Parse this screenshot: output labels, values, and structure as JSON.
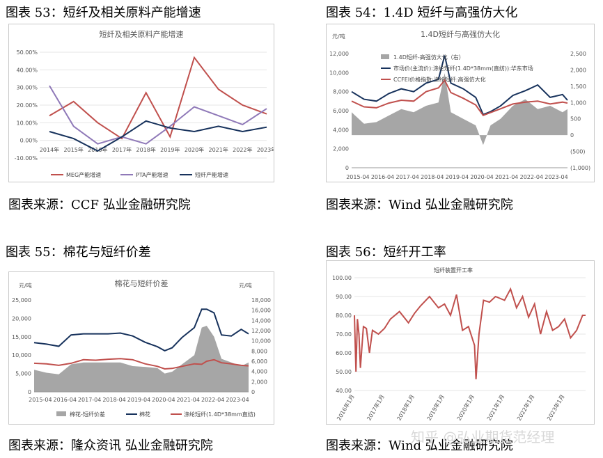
{
  "fig53": {
    "title": "图表 53：短纤及相关原料产能增速",
    "source": "图表来源：CCF 弘业金融研究院"
  },
  "fig54": {
    "title": "图表 54：1.4D 短纤与高强仿大化",
    "source": "图表来源：Wind 弘业金融研究院"
  },
  "fig55": {
    "title": "图表 55：棉花与短纤价差",
    "source": "图表来源：隆众资讯 弘业金融研究院"
  },
  "fig56": {
    "title": "图表 56：短纤开工率",
    "source": "图表来源：Wind 弘业金融研究院"
  },
  "watermark": "知乎 @弘业期货范经理",
  "chart_data": [
    {
      "id": "fig53",
      "type": "line",
      "title": "短纤及相关原料产能增速",
      "x": [
        "2014年",
        "2015年",
        "2016年",
        "2017年",
        "2018年",
        "2019年",
        "2020年",
        "2021年",
        "2022年",
        "2023年"
      ],
      "ylim": [
        -10,
        50
      ],
      "yticks": [
        "50.00%",
        "40.00%",
        "30.00%",
        "20.00%",
        "10.00%",
        "0.00%",
        "-10.00%"
      ],
      "series": [
        {
          "name": "MEG产能增速",
          "color": "#c0504d",
          "values": [
            14,
            22,
            10,
            1,
            27,
            2,
            47,
            29,
            20,
            15
          ]
        },
        {
          "name": "PTA产能增速",
          "color": "#8f79b8",
          "values": [
            31,
            8,
            -2,
            2,
            -2,
            8,
            19,
            14,
            9,
            18
          ]
        },
        {
          "name": "短纤产能增速",
          "color": "#17325c",
          "values": [
            5,
            1,
            -6,
            2,
            11,
            7,
            5,
            8,
            5,
            7.5
          ]
        }
      ],
      "legend": "bottom"
    },
    {
      "id": "fig54",
      "type": "line",
      "title": "1.4D短纤与高强仿大化",
      "ylabel": "元/吨",
      "x_ticks": [
        "2015-04",
        "2016-04",
        "2017-04",
        "2018-04",
        "2019-04",
        "2020-04",
        "2021-04",
        "2022-04",
        "2023-04"
      ],
      "left_ticks": [
        "12,000",
        "10,000",
        "8,000",
        "6,000",
        "4,000",
        "2,000",
        "0"
      ],
      "right_ticks": [
        "2,500",
        "2,000",
        "1,500",
        "1,000",
        "500",
        "0",
        "(500)",
        "(1,000)"
      ],
      "ylim_left": [
        0,
        12000
      ],
      "ylim_right": [
        -1000,
        2500
      ],
      "x_range": [
        2015.0,
        2023.7
      ],
      "series": [
        {
          "name": "1.4D短纤-高强仿大化（右）",
          "type": "area",
          "axis": "right",
          "color": "#a6a6a6",
          "x": [
            2015.0,
            2015.5,
            2016.0,
            2016.5,
            2017.0,
            2017.5,
            2018.0,
            2018.5,
            2018.75,
            2019.0,
            2019.5,
            2020.0,
            2020.3,
            2020.6,
            2021.0,
            2021.5,
            2022.0,
            2022.5,
            2023.0,
            2023.5,
            2023.7
          ],
          "values": [
            700,
            350,
            400,
            600,
            800,
            700,
            900,
            1000,
            1900,
            700,
            500,
            300,
            -300,
            300,
            500,
            900,
            1100,
            800,
            900,
            700,
            800
          ]
        },
        {
          "name": "市场价(主流价):涤纶短纤(1.4D*38mm(直纺)):华东市场",
          "type": "line",
          "axis": "left",
          "color": "#17325c",
          "x": [
            2015.0,
            2015.5,
            2016.0,
            2016.5,
            2017.0,
            2017.5,
            2018.0,
            2018.5,
            2018.75,
            2019.0,
            2019.5,
            2020.0,
            2020.3,
            2020.6,
            2021.0,
            2021.5,
            2022.0,
            2022.5,
            2023.0,
            2023.5,
            2023.7
          ],
          "values": [
            8000,
            7200,
            7000,
            7800,
            8300,
            8000,
            8900,
            9300,
            11800,
            8900,
            8300,
            7400,
            5600,
            5900,
            6500,
            7600,
            8100,
            8700,
            7400,
            7700,
            7100
          ]
        },
        {
          "name": "CCFEI价格指数:涤纶短纤:高强仿大化",
          "type": "line",
          "axis": "left",
          "color": "#c0504d",
          "x": [
            2015.0,
            2015.5,
            2016.0,
            2016.5,
            2017.0,
            2017.5,
            2018.0,
            2018.5,
            2018.75,
            2019.0,
            2019.5,
            2020.0,
            2020.3,
            2020.6,
            2021.0,
            2021.5,
            2022.0,
            2022.5,
            2023.0,
            2023.5,
            2023.7
          ],
          "values": [
            7000,
            6400,
            6300,
            6800,
            7100,
            7000,
            8000,
            8400,
            9200,
            7900,
            7300,
            6600,
            5500,
            5800,
            6200,
            6700,
            6900,
            7000,
            6700,
            6900,
            6800
          ]
        }
      ]
    },
    {
      "id": "fig55",
      "type": "line",
      "title": "棉花与短纤价差",
      "ylabel_left": "元/吨",
      "ylabel_right": "元/吨",
      "x_ticks": [
        "2015-04",
        "2016-04",
        "2017-04",
        "2018-04",
        "2019-04",
        "2020-04",
        "2021-04",
        "2022-04",
        "2023-04"
      ],
      "left_ticks": [
        "25,000",
        "20,000",
        "15,000",
        "10,000",
        "5,000",
        "0"
      ],
      "right_ticks": [
        "18,000",
        "16,000",
        "14,000",
        "12,000",
        "10,000",
        "8,000",
        "6,000",
        "4,000",
        "2,000",
        "0"
      ],
      "ylim_left": [
        0,
        25000
      ],
      "ylim_right": [
        0,
        18000
      ],
      "x_range": [
        2015.0,
        2023.7
      ],
      "series": [
        {
          "name": "棉花-短纤价差",
          "type": "area",
          "axis": "left",
          "color": "#a6a6a6",
          "x": [
            2015.0,
            2015.5,
            2016.0,
            2016.5,
            2017.0,
            2017.5,
            2018.0,
            2018.5,
            2019.0,
            2019.5,
            2020.0,
            2020.3,
            2020.6,
            2021.0,
            2021.5,
            2021.8,
            2022.0,
            2022.3,
            2022.6,
            2023.0,
            2023.4,
            2023.7
          ],
          "values": [
            6000,
            5200,
            4800,
            7500,
            8000,
            8000,
            8000,
            8000,
            7000,
            6800,
            6500,
            5000,
            5500,
            7500,
            10000,
            17500,
            18000,
            15000,
            9000,
            8000,
            7000,
            8000
          ]
        },
        {
          "name": "棉花",
          "type": "line",
          "axis": "left",
          "color": "#17325c",
          "x": [
            2015.0,
            2015.5,
            2016.0,
            2016.5,
            2017.0,
            2017.5,
            2018.0,
            2018.5,
            2019.0,
            2019.5,
            2020.0,
            2020.3,
            2020.6,
            2021.0,
            2021.5,
            2021.8,
            2022.0,
            2022.3,
            2022.6,
            2023.0,
            2023.4,
            2023.7
          ],
          "values": [
            13400,
            13000,
            12400,
            15500,
            15800,
            15800,
            15800,
            16000,
            15200,
            13500,
            12300,
            11200,
            12000,
            14800,
            17500,
            22500,
            22500,
            21500,
            15500,
            15200,
            17000,
            15800
          ]
        },
        {
          "name": "涤纶短纤(1.4D*38mm直纺)",
          "type": "line",
          "axis": "right",
          "color": "#c0504d",
          "x": [
            2015.0,
            2015.5,
            2016.0,
            2016.5,
            2017.0,
            2017.5,
            2018.0,
            2018.5,
            2019.0,
            2019.5,
            2020.0,
            2020.3,
            2020.6,
            2021.0,
            2021.5,
            2021.8,
            2022.0,
            2022.3,
            2022.6,
            2023.0,
            2023.4,
            2023.7
          ],
          "values": [
            5600,
            5500,
            5200,
            5600,
            6300,
            6200,
            6400,
            6500,
            6300,
            5500,
            5000,
            4500,
            4600,
            5000,
            5500,
            5400,
            6000,
            6300,
            5700,
            5500,
            5200,
            5100
          ]
        }
      ],
      "legend": "bottom"
    },
    {
      "id": "fig56",
      "type": "line",
      "title": "短纤装置开工率",
      "ylim": [
        40,
        100
      ],
      "left_ticks": [
        "100.00",
        "90.00",
        "80.00",
        "70.00",
        "60.00",
        "50.00",
        "40.00"
      ],
      "x_ticks": [
        "2016年1月",
        "2017年1月",
        "2018年1月",
        "2019年1月",
        "2020年1月",
        "2021年1月",
        "2022年1月",
        "2023年1月"
      ],
      "x_range": [
        2016.0,
        2023.7
      ],
      "series": [
        {
          "name": "短纤装置开工率",
          "color": "#c0504d",
          "x": [
            2016.0,
            2016.05,
            2016.1,
            2016.15,
            2016.2,
            2016.3,
            2016.4,
            2016.5,
            2016.6,
            2016.8,
            2017.0,
            2017.2,
            2017.5,
            2017.8,
            2018.0,
            2018.2,
            2018.5,
            2018.8,
            2019.0,
            2019.2,
            2019.4,
            2019.6,
            2019.8,
            2020.0,
            2020.05,
            2020.15,
            2020.3,
            2020.5,
            2020.7,
            2021.0,
            2021.2,
            2021.4,
            2021.6,
            2021.8,
            2022.0,
            2022.2,
            2022.4,
            2022.6,
            2022.8,
            2023.0,
            2023.2,
            2023.4,
            2023.6,
            2023.7
          ],
          "values": [
            80,
            50,
            78,
            70,
            52,
            74,
            73,
            60,
            72,
            70,
            73,
            78,
            82,
            76,
            81,
            85,
            90,
            84,
            86,
            80,
            91,
            72,
            74,
            64,
            46,
            70,
            88,
            87,
            90,
            88,
            94,
            84,
            90,
            79,
            86,
            70,
            82,
            72,
            74,
            78,
            68,
            72,
            80,
            80
          ]
        }
      ]
    }
  ]
}
